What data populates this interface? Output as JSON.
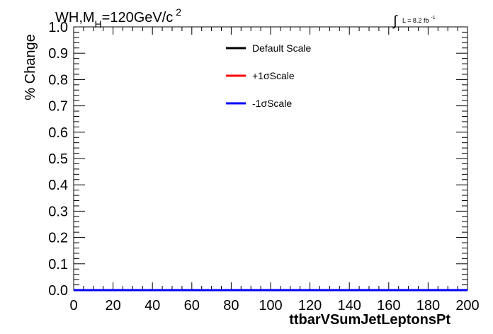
{
  "header": {
    "title_prefix": "WH,M",
    "title_sub": "H",
    "title_mid": "=120GeV/c",
    "title_sup": "2",
    "lumi_integral": "∫",
    "lumi_text": "L = 8.2 fb",
    "lumi_sup": "-1"
  },
  "chart_data": {
    "type": "line",
    "xlabel": "ttbarVSumJetLeptonsPt",
    "ylabel": "% Change",
    "xlim": [
      0,
      200
    ],
    "ylim": [
      0,
      1.0
    ],
    "x_ticks": [
      "0",
      "20",
      "40",
      "60",
      "80",
      "100",
      "120",
      "140",
      "160",
      "180",
      "200"
    ],
    "y_ticks": [
      "0.0",
      "0.1",
      "0.2",
      "0.3",
      "0.4",
      "0.5",
      "0.6",
      "0.7",
      "0.8",
      "0.9",
      "1.0"
    ],
    "grid": false,
    "legend_position": "top-center",
    "series": [
      {
        "name": "Default Scale",
        "color": "#000000",
        "x": [
          0,
          200
        ],
        "y": [
          0,
          0
        ]
      },
      {
        "name": "+1σScale",
        "color": "#ff0000",
        "x": [
          0,
          200
        ],
        "y": [
          0,
          0
        ]
      },
      {
        "name": "-1σScale",
        "color": "#0000ff",
        "x": [
          0,
          200
        ],
        "y": [
          0,
          0
        ]
      }
    ]
  }
}
